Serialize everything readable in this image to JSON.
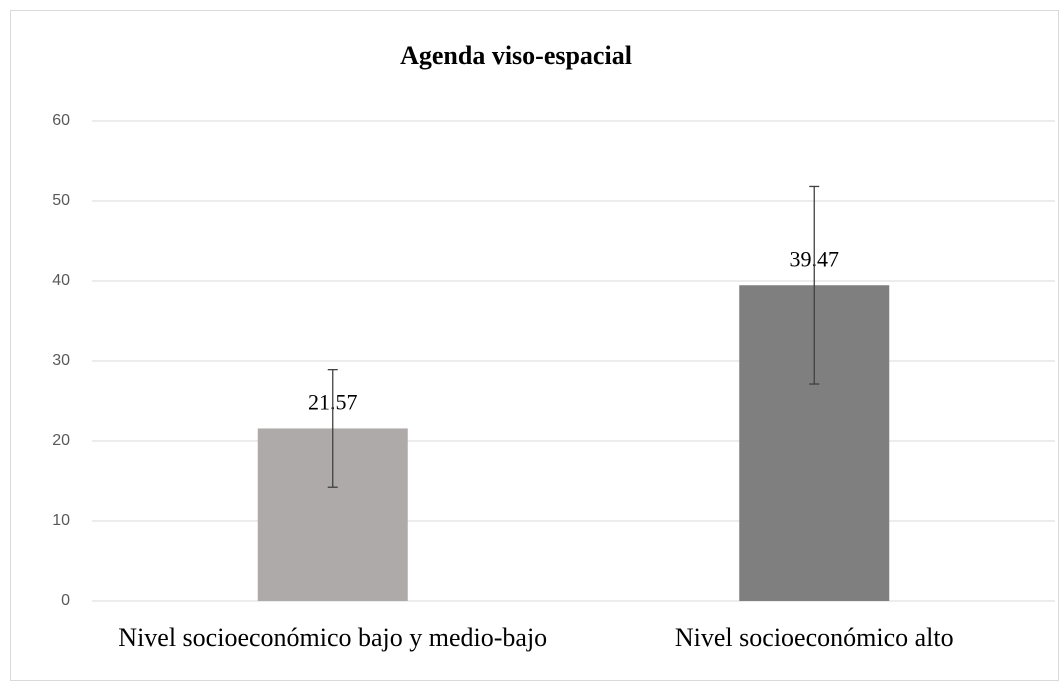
{
  "chart_data": {
    "type": "bar",
    "title": "Agenda viso-espacial",
    "categories": [
      "Nivel socioeconómico bajo y medio-bajo",
      "Nivel socioeconómico alto"
    ],
    "values": [
      21.57,
      39.47
    ],
    "errors": [
      7.35,
      12.35
    ],
    "colors": [
      "#aeaaaa",
      "#7f7f7f"
    ],
    "ylim": [
      0,
      60
    ],
    "yticks": [
      0,
      10,
      20,
      30,
      40,
      50,
      60
    ],
    "grid": true
  }
}
